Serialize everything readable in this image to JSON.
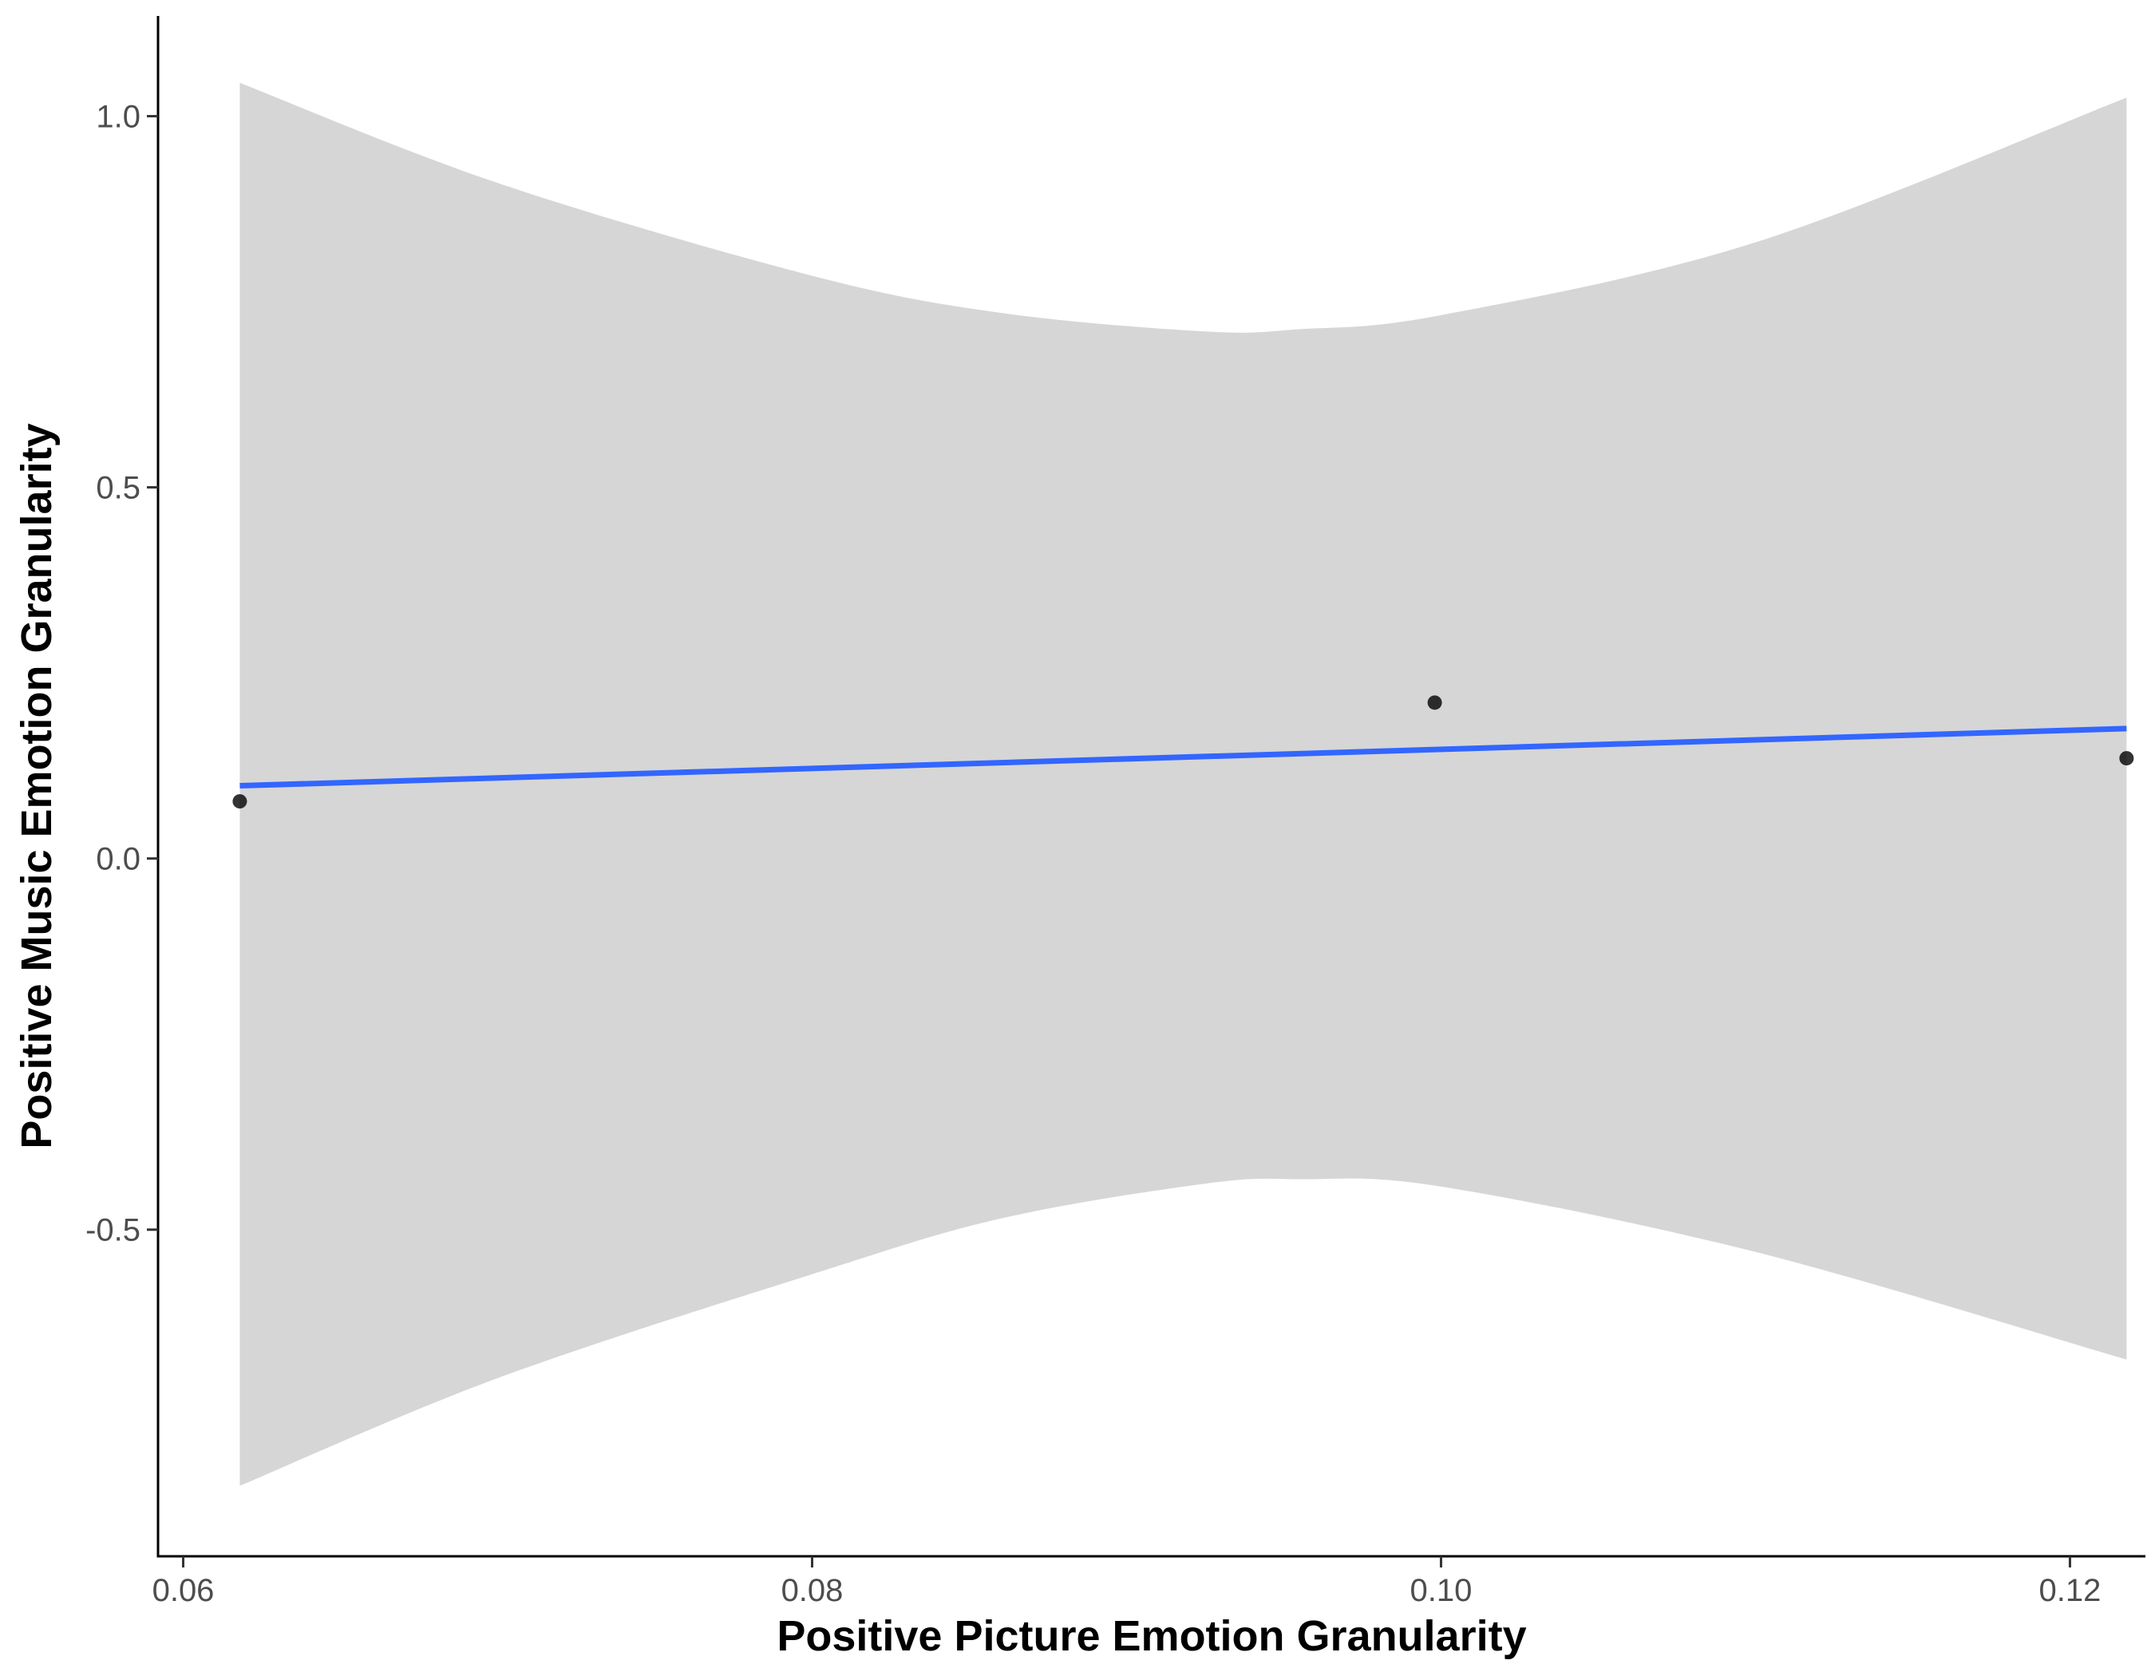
{
  "chart_data": {
    "type": "scatter",
    "xlabel": "Positive Picture Emotion Granularity",
    "ylabel": "Positive Music Emotion Granularity",
    "xlim": [
      0.0592,
      0.1224
    ],
    "ylim": [
      -0.94,
      1.135
    ],
    "x_ticks": [
      0.06,
      0.08,
      0.1,
      0.12
    ],
    "x_tick_labels": [
      "0.06",
      "0.08",
      "0.10",
      "0.12"
    ],
    "y_ticks": [
      -0.5,
      0.0,
      0.5,
      1.0
    ],
    "y_tick_labels": [
      "-0.5",
      "0.0",
      "0.5",
      "1.0"
    ],
    "grid": false,
    "points": [
      {
        "x": 0.0618,
        "y": 0.077
      },
      {
        "x": 0.0998,
        "y": 0.21
      },
      {
        "x": 0.1218,
        "y": 0.135
      }
    ],
    "fit_line": {
      "x": [
        0.0618,
        0.1218
      ],
      "y": [
        0.098,
        0.175
      ]
    },
    "confidence_band": {
      "x": [
        0.0618,
        0.07,
        0.08,
        0.086,
        0.0925,
        0.0955,
        0.1,
        0.11,
        0.1218
      ],
      "upper": [
        1.045,
        0.91,
        0.785,
        0.735,
        0.71,
        0.713,
        0.732,
        0.83,
        1.025
      ],
      "lower": [
        -0.845,
        -0.7,
        -0.56,
        -0.485,
        -0.438,
        -0.432,
        -0.442,
        -0.53,
        -0.675
      ]
    },
    "colors": {
      "points": "#000000",
      "fit_line": "#3366FF",
      "band": "#d6d6d6",
      "axis": "#000000",
      "tick_text": "#4d4d4d"
    }
  }
}
